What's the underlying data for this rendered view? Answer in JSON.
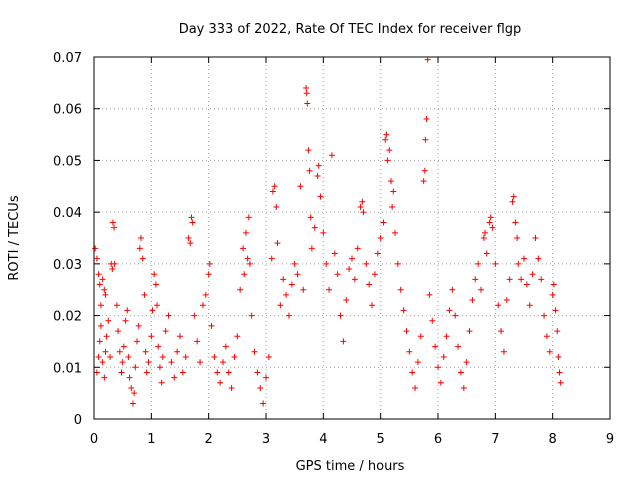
{
  "chart_data": {
    "type": "scatter",
    "title": "Day 333 of 2022, Rate Of TEC Index for receiver flgp",
    "xlabel": "GPS time / hours",
    "ylabel": "ROTI / TECUs",
    "xlim": [
      0,
      9
    ],
    "ylim": [
      0,
      0.07
    ],
    "x_ticks": [
      0,
      1,
      2,
      3,
      4,
      5,
      6,
      7,
      8,
      9
    ],
    "x_tick_labels": [
      "0",
      "1",
      "2",
      "3",
      "4",
      "5",
      "6",
      "7",
      "8",
      "9"
    ],
    "y_ticks": [
      0,
      0.01,
      0.02,
      0.03,
      0.04,
      0.05,
      0.06,
      0.07
    ],
    "y_tick_labels": [
      "0",
      "0.01",
      "0.02",
      "0.03",
      "0.04",
      "0.05",
      "0.06",
      "0.07"
    ],
    "grid": true,
    "marker": "+",
    "color": "#ff0000",
    "series": [
      {
        "name": "ROTI",
        "points": [
          [
            0.02,
            0.033
          ],
          [
            0.05,
            0.031
          ],
          [
            0.08,
            0.028
          ],
          [
            0.1,
            0.026
          ],
          [
            0.12,
            0.022
          ],
          [
            0.15,
            0.027
          ],
          [
            0.18,
            0.025
          ],
          [
            0.2,
            0.024
          ],
          [
            0.05,
            0.009
          ],
          [
            0.08,
            0.012
          ],
          [
            0.1,
            0.015
          ],
          [
            0.12,
            0.018
          ],
          [
            0.15,
            0.011
          ],
          [
            0.18,
            0.008
          ],
          [
            0.2,
            0.013
          ],
          [
            0.22,
            0.016
          ],
          [
            0.25,
            0.019
          ],
          [
            0.28,
            0.012
          ],
          [
            0.3,
            0.03
          ],
          [
            0.32,
            0.029
          ],
          [
            0.35,
            0.037
          ],
          [
            0.33,
            0.038
          ],
          [
            0.36,
            0.03
          ],
          [
            0.4,
            0.022
          ],
          [
            0.42,
            0.017
          ],
          [
            0.45,
            0.013
          ],
          [
            0.48,
            0.009
          ],
          [
            0.5,
            0.011
          ],
          [
            0.52,
            0.014
          ],
          [
            0.55,
            0.019
          ],
          [
            0.58,
            0.021
          ],
          [
            0.6,
            0.012
          ],
          [
            0.62,
            0.008
          ],
          [
            0.65,
            0.006
          ],
          [
            0.68,
            0.003
          ],
          [
            0.7,
            0.005
          ],
          [
            0.72,
            0.01
          ],
          [
            0.75,
            0.015
          ],
          [
            0.78,
            0.018
          ],
          [
            0.8,
            0.033
          ],
          [
            0.82,
            0.035
          ],
          [
            0.85,
            0.031
          ],
          [
            0.88,
            0.024
          ],
          [
            0.9,
            0.013
          ],
          [
            0.92,
            0.009
          ],
          [
            0.95,
            0.011
          ],
          [
            1.0,
            0.016
          ],
          [
            1.02,
            0.021
          ],
          [
            1.05,
            0.028
          ],
          [
            1.08,
            0.026
          ],
          [
            1.1,
            0.022
          ],
          [
            1.12,
            0.014
          ],
          [
            1.15,
            0.01
          ],
          [
            1.18,
            0.007
          ],
          [
            1.2,
            0.012
          ],
          [
            1.25,
            0.017
          ],
          [
            1.3,
            0.02
          ],
          [
            1.35,
            0.011
          ],
          [
            1.4,
            0.008
          ],
          [
            1.45,
            0.013
          ],
          [
            1.5,
            0.016
          ],
          [
            1.55,
            0.009
          ],
          [
            1.6,
            0.012
          ],
          [
            1.65,
            0.035
          ],
          [
            1.68,
            0.034
          ],
          [
            1.7,
            0.039
          ],
          [
            1.72,
            0.038
          ],
          [
            1.75,
            0.02
          ],
          [
            1.8,
            0.015
          ],
          [
            1.85,
            0.011
          ],
          [
            1.9,
            0.022
          ],
          [
            1.95,
            0.024
          ],
          [
            2.0,
            0.028
          ],
          [
            2.02,
            0.03
          ],
          [
            2.05,
            0.018
          ],
          [
            2.1,
            0.012
          ],
          [
            2.15,
            0.009
          ],
          [
            2.2,
            0.007
          ],
          [
            2.25,
            0.011
          ],
          [
            2.3,
            0.014
          ],
          [
            2.35,
            0.009
          ],
          [
            2.4,
            0.006
          ],
          [
            2.45,
            0.012
          ],
          [
            2.5,
            0.016
          ],
          [
            2.55,
            0.025
          ],
          [
            2.6,
            0.033
          ],
          [
            2.62,
            0.028
          ],
          [
            2.65,
            0.036
          ],
          [
            2.68,
            0.031
          ],
          [
            2.7,
            0.039
          ],
          [
            2.72,
            0.03
          ],
          [
            2.75,
            0.02
          ],
          [
            2.8,
            0.013
          ],
          [
            2.85,
            0.009
          ],
          [
            2.9,
            0.006
          ],
          [
            2.95,
            0.003
          ],
          [
            3.0,
            0.008
          ],
          [
            3.05,
            0.012
          ],
          [
            3.1,
            0.031
          ],
          [
            3.12,
            0.044
          ],
          [
            3.15,
            0.045
          ],
          [
            3.18,
            0.041
          ],
          [
            3.2,
            0.034
          ],
          [
            3.25,
            0.022
          ],
          [
            3.3,
            0.027
          ],
          [
            3.35,
            0.024
          ],
          [
            3.4,
            0.02
          ],
          [
            3.45,
            0.026
          ],
          [
            3.5,
            0.03
          ],
          [
            3.55,
            0.028
          ],
          [
            3.6,
            0.045
          ],
          [
            3.65,
            0.025
          ],
          [
            3.7,
            0.064
          ],
          [
            3.71,
            0.063
          ],
          [
            3.72,
            0.061
          ],
          [
            3.74,
            0.052
          ],
          [
            3.76,
            0.048
          ],
          [
            3.78,
            0.039
          ],
          [
            3.8,
            0.033
          ],
          [
            3.85,
            0.037
          ],
          [
            3.9,
            0.047
          ],
          [
            3.92,
            0.049
          ],
          [
            3.95,
            0.043
          ],
          [
            4.0,
            0.036
          ],
          [
            4.05,
            0.03
          ],
          [
            4.1,
            0.025
          ],
          [
            4.15,
            0.051
          ],
          [
            4.2,
            0.032
          ],
          [
            4.25,
            0.028
          ],
          [
            4.3,
            0.02
          ],
          [
            4.35,
            0.015
          ],
          [
            4.4,
            0.023
          ],
          [
            4.45,
            0.029
          ],
          [
            4.5,
            0.031
          ],
          [
            4.55,
            0.027
          ],
          [
            4.6,
            0.033
          ],
          [
            4.65,
            0.041
          ],
          [
            4.68,
            0.042
          ],
          [
            4.7,
            0.04
          ],
          [
            4.75,
            0.03
          ],
          [
            4.8,
            0.026
          ],
          [
            4.85,
            0.022
          ],
          [
            4.9,
            0.028
          ],
          [
            4.95,
            0.032
          ],
          [
            5.0,
            0.035
          ],
          [
            5.05,
            0.038
          ],
          [
            5.08,
            0.054
          ],
          [
            5.1,
            0.055
          ],
          [
            5.12,
            0.05
          ],
          [
            5.15,
            0.052
          ],
          [
            5.18,
            0.046
          ],
          [
            5.2,
            0.041
          ],
          [
            5.22,
            0.044
          ],
          [
            5.25,
            0.036
          ],
          [
            5.3,
            0.03
          ],
          [
            5.35,
            0.025
          ],
          [
            5.4,
            0.021
          ],
          [
            5.45,
            0.017
          ],
          [
            5.5,
            0.013
          ],
          [
            5.55,
            0.009
          ],
          [
            5.6,
            0.006
          ],
          [
            5.65,
            0.011
          ],
          [
            5.7,
            0.016
          ],
          [
            5.75,
            0.046
          ],
          [
            5.77,
            0.048
          ],
          [
            5.78,
            0.054
          ],
          [
            5.8,
            0.058
          ],
          [
            5.82,
            0.0695
          ],
          [
            5.85,
            0.024
          ],
          [
            5.9,
            0.019
          ],
          [
            5.95,
            0.014
          ],
          [
            6.0,
            0.01
          ],
          [
            6.05,
            0.007
          ],
          [
            6.1,
            0.012
          ],
          [
            6.15,
            0.016
          ],
          [
            6.2,
            0.021
          ],
          [
            6.25,
            0.025
          ],
          [
            6.3,
            0.02
          ],
          [
            6.35,
            0.014
          ],
          [
            6.4,
            0.009
          ],
          [
            6.45,
            0.006
          ],
          [
            6.5,
            0.011
          ],
          [
            6.55,
            0.017
          ],
          [
            6.6,
            0.023
          ],
          [
            6.65,
            0.027
          ],
          [
            6.7,
            0.03
          ],
          [
            6.75,
            0.025
          ],
          [
            6.8,
            0.035
          ],
          [
            6.82,
            0.036
          ],
          [
            6.85,
            0.032
          ],
          [
            6.9,
            0.038
          ],
          [
            6.92,
            0.039
          ],
          [
            6.95,
            0.037
          ],
          [
            7.0,
            0.03
          ],
          [
            7.05,
            0.022
          ],
          [
            7.1,
            0.017
          ],
          [
            7.15,
            0.013
          ],
          [
            7.2,
            0.023
          ],
          [
            7.25,
            0.027
          ],
          [
            7.3,
            0.042
          ],
          [
            7.32,
            0.043
          ],
          [
            7.35,
            0.038
          ],
          [
            7.38,
            0.035
          ],
          [
            7.4,
            0.03
          ],
          [
            7.45,
            0.027
          ],
          [
            7.5,
            0.031
          ],
          [
            7.55,
            0.026
          ],
          [
            7.6,
            0.022
          ],
          [
            7.65,
            0.028
          ],
          [
            7.7,
            0.035
          ],
          [
            7.75,
            0.031
          ],
          [
            7.8,
            0.027
          ],
          [
            7.85,
            0.02
          ],
          [
            7.9,
            0.016
          ],
          [
            7.95,
            0.013
          ],
          [
            8.0,
            0.024
          ],
          [
            8.02,
            0.026
          ],
          [
            8.05,
            0.021
          ],
          [
            8.08,
            0.017
          ],
          [
            8.1,
            0.012
          ],
          [
            8.12,
            0.009
          ],
          [
            8.14,
            0.007
          ]
        ]
      }
    ]
  }
}
